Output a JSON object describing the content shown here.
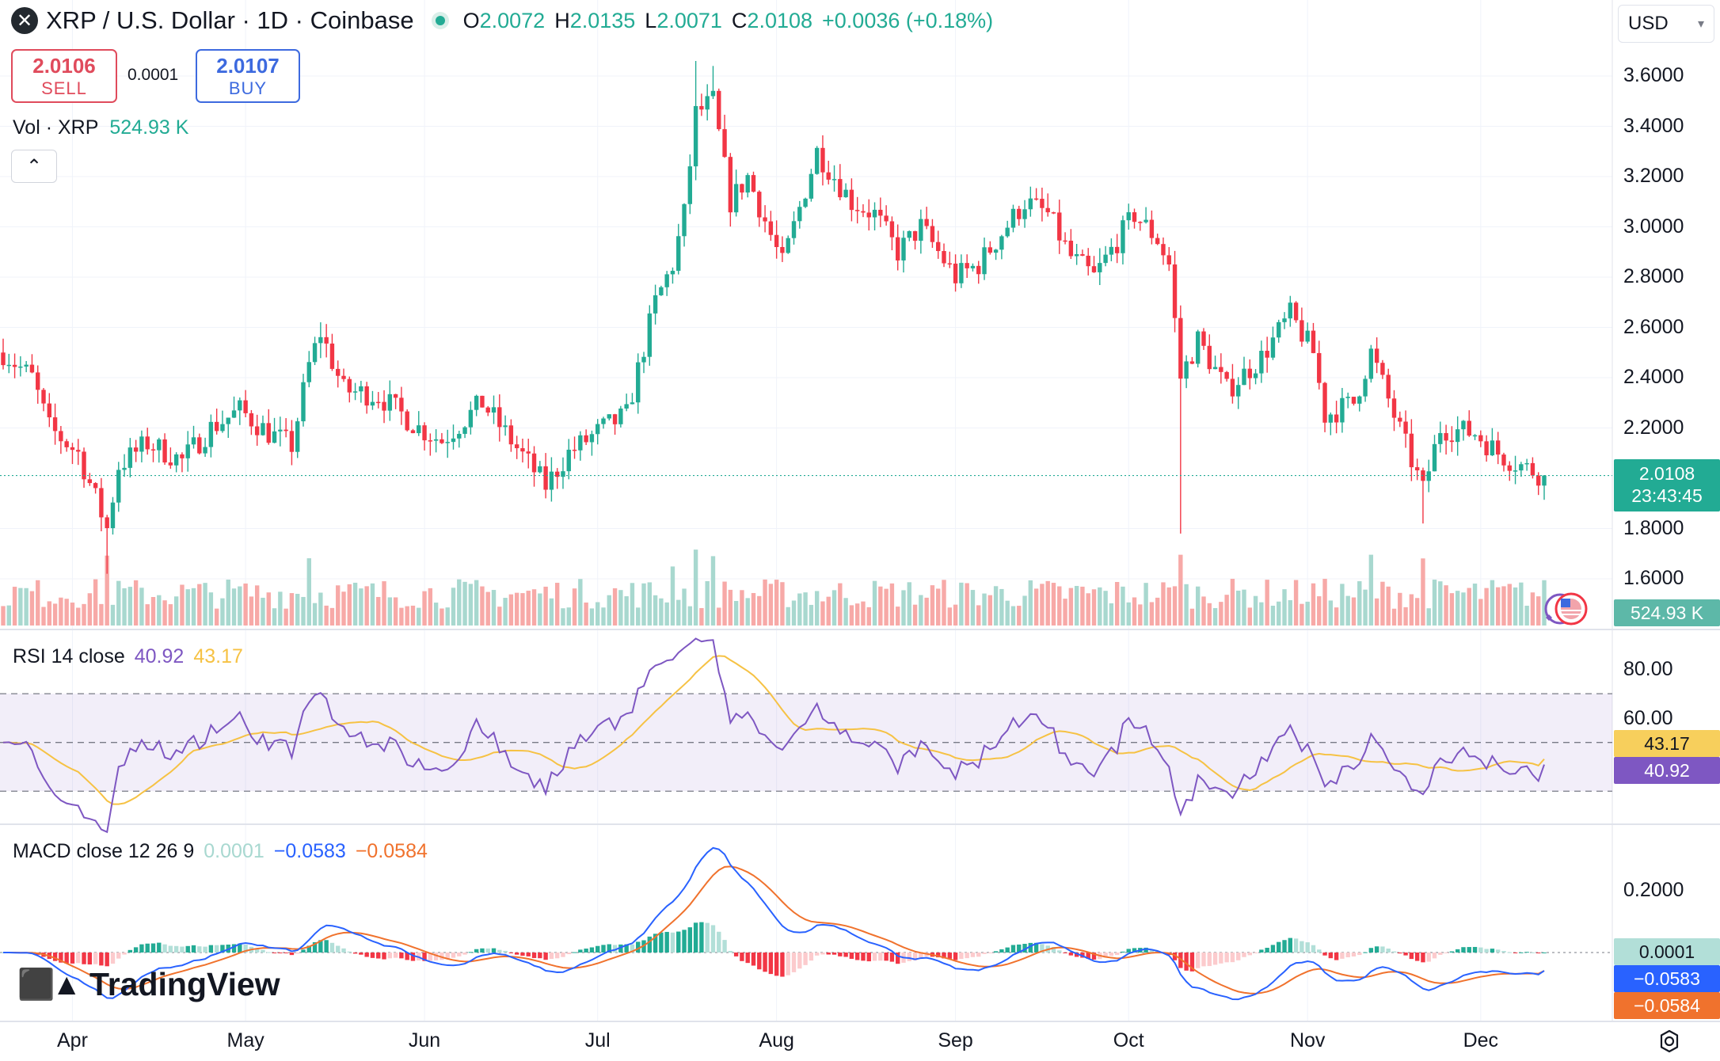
{
  "header": {
    "symbol_icon": "xrp-logo-icon",
    "title": "XRP / U.S. Dollar · 1D · Coinbase",
    "open_label": "O",
    "open": "2.0072",
    "high_label": "H",
    "high": "2.0135",
    "low_label": "L",
    "low": "2.0071",
    "close_label": "C",
    "close": "2.0108",
    "change": "+0.0036 (+0.18%)"
  },
  "trade": {
    "sell_price": "2.0106",
    "sell_label": "SELL",
    "spread": "0.0001",
    "buy_price": "2.0107",
    "buy_label": "BUY"
  },
  "currency": {
    "value": "USD",
    "icon": "chevron-down-icon"
  },
  "volume_legend": {
    "label": "Vol · XRP",
    "value": "524.93 K"
  },
  "rsi_legend": {
    "label": "RSI 14 close",
    "rsi": "40.92",
    "ma": "43.17"
  },
  "macd_legend": {
    "label": "MACD close 12 26 9",
    "hist": "0.0001",
    "macd": "−0.0583",
    "signal": "−0.0584"
  },
  "tags": {
    "price": "2.0108",
    "countdown": "23:43:45",
    "volume": "524.93 K",
    "rsi_ma": "43.17",
    "rsi": "40.92",
    "macd_hist": "0.0001",
    "macd": "−0.0583",
    "macd_signal": "−0.0584"
  },
  "brand": "TradingView",
  "colors": {
    "up": "#22ab94",
    "down": "#f23645",
    "rsi": "#7e57c2",
    "rsi_ma": "#f6c244",
    "macd": "#2962ff",
    "signal": "#f0722d"
  },
  "chart_data": {
    "type": "candlestick",
    "title": "XRP / U.S. Dollar · 1D · Coinbase",
    "x_ticks": [
      "Apr",
      "May",
      "Jun",
      "Jul",
      "Aug",
      "Sep",
      "Oct",
      "Nov",
      "Dec"
    ],
    "y_ticks": [
      "3.6000",
      "3.4000",
      "3.2000",
      "3.0000",
      "2.8000",
      "2.6000",
      "2.4000",
      "2.2000",
      "1.8000",
      "1.6000"
    ],
    "rsi_ticks": [
      "80.00",
      "60.00"
    ],
    "macd_ticks": [
      "0.2000"
    ],
    "rsi_levels": [
      70,
      50,
      30
    ],
    "ylim": [
      1.5,
      3.72
    ],
    "last_price": 2.0108,
    "price_path": [
      [
        "2025-03-20",
        2.5
      ],
      [
        "2025-03-25",
        2.4
      ],
      [
        "2025-03-28",
        2.2
      ],
      [
        "2025-04-02",
        2.1
      ],
      [
        "2025-04-07",
        1.8
      ],
      [
        "2025-04-09",
        2.05
      ],
      [
        "2025-04-14",
        2.14
      ],
      [
        "2025-04-20",
        2.07
      ],
      [
        "2025-04-25",
        2.2
      ],
      [
        "2025-04-30",
        2.27
      ],
      [
        "2025-05-05",
        2.18
      ],
      [
        "2025-05-09",
        2.13
      ],
      [
        "2025-05-12",
        2.45
      ],
      [
        "2025-05-14",
        2.58
      ],
      [
        "2025-05-18",
        2.35
      ],
      [
        "2025-05-24",
        2.33
      ],
      [
        "2025-05-31",
        2.2
      ],
      [
        "2025-06-04",
        2.15
      ],
      [
        "2025-06-11",
        2.3
      ],
      [
        "2025-06-15",
        2.18
      ],
      [
        "2025-06-22",
        1.97
      ],
      [
        "2025-06-26",
        2.1
      ],
      [
        "2025-07-02",
        2.2
      ],
      [
        "2025-07-06",
        2.25
      ],
      [
        "2025-07-11",
        2.7
      ],
      [
        "2025-07-14",
        2.85
      ],
      [
        "2025-07-16",
        3.05
      ],
      [
        "2025-07-18",
        3.45
      ],
      [
        "2025-07-21",
        3.5
      ],
      [
        "2025-07-24",
        3.1
      ],
      [
        "2025-07-27",
        3.2
      ],
      [
        "2025-08-02",
        2.85
      ],
      [
        "2025-08-08",
        3.3
      ],
      [
        "2025-08-14",
        3.1
      ],
      [
        "2025-08-18",
        3.05
      ],
      [
        "2025-08-22",
        2.9
      ],
      [
        "2025-08-26",
        3.0
      ],
      [
        "2025-09-01",
        2.8
      ],
      [
        "2025-09-05",
        2.85
      ],
      [
        "2025-09-13",
        3.1
      ],
      [
        "2025-09-17",
        3.05
      ],
      [
        "2025-09-21",
        2.88
      ],
      [
        "2025-09-25",
        2.8
      ],
      [
        "2025-10-02",
        3.05
      ],
      [
        "2025-10-06",
        2.95
      ],
      [
        "2025-10-08",
        2.85
      ],
      [
        "2025-10-10",
        2.4
      ],
      [
        "2025-10-13",
        2.55
      ],
      [
        "2025-10-18",
        2.35
      ],
      [
        "2025-10-24",
        2.48
      ],
      [
        "2025-10-29",
        2.65
      ],
      [
        "2025-11-02",
        2.5
      ],
      [
        "2025-11-04",
        2.25
      ],
      [
        "2025-11-09",
        2.3
      ],
      [
        "2025-11-12",
        2.5
      ],
      [
        "2025-11-16",
        2.25
      ],
      [
        "2025-11-21",
        1.95
      ],
      [
        "2025-11-24",
        2.2
      ],
      [
        "2025-11-30",
        2.18
      ],
      [
        "2025-12-04",
        2.1
      ],
      [
        "2025-12-08",
        2.05
      ],
      [
        "2025-12-12",
        2.01
      ]
    ],
    "volume_last": "524.93 K",
    "rsi_last": 40.92,
    "rsi_ma_last": 43.17,
    "macd_last": -0.0583,
    "signal_last": -0.0584,
    "hist_last": 0.0001
  }
}
